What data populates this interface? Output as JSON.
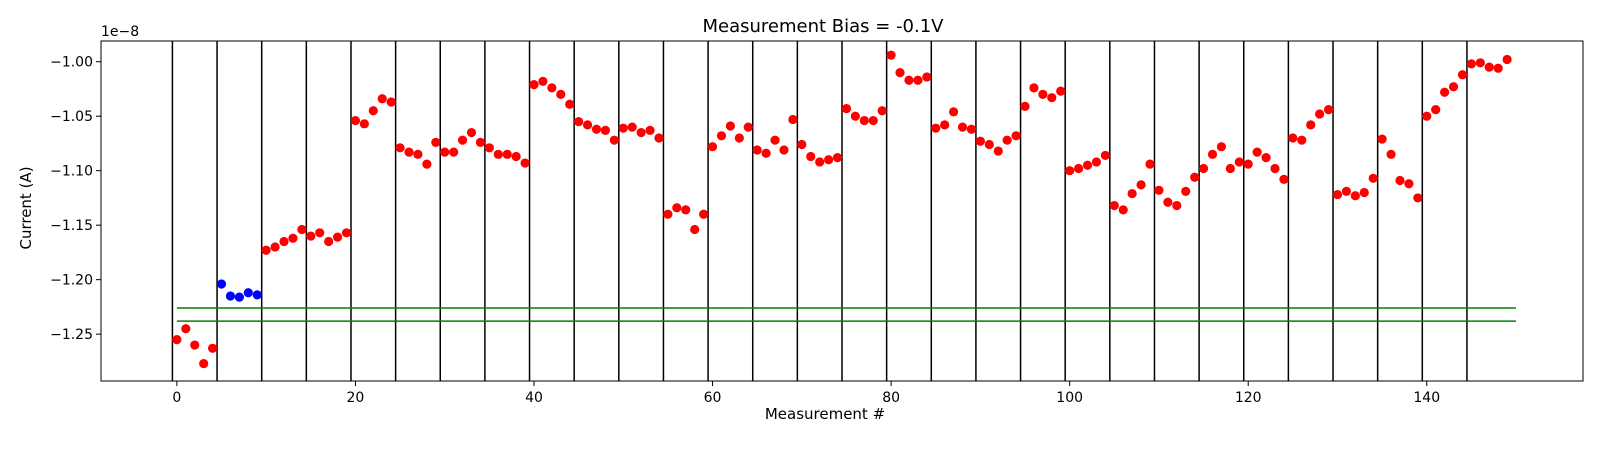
{
  "chart_data": {
    "type": "scatter",
    "title": "Measurement Bias = -0.1V",
    "xlabel": "Measurement #",
    "ylabel": "Current (A)",
    "offset_label": "1e−8",
    "xlim": [
      -8.5,
      157.5
    ],
    "ylim": [
      -1.293,
      -0.981
    ],
    "x_ticks": [
      0,
      20,
      40,
      60,
      80,
      100,
      120,
      140
    ],
    "y_ticks": [
      -1.25,
      -1.2,
      -1.15,
      -1.1,
      -1.05,
      -1.0
    ],
    "y_tick_labels": [
      "−1.25",
      "−1.20",
      "−1.15",
      "−1.10",
      "−1.05",
      "−1.00"
    ],
    "grid": false,
    "vertical_lines_x": [
      -0.5,
      4.5,
      9.5,
      14.5,
      19.5,
      24.5,
      29.5,
      34.5,
      39.5,
      44.5,
      49.5,
      54.5,
      59.5,
      64.5,
      69.5,
      74.5,
      79.5,
      84.5,
      89.5,
      94.5,
      99.5,
      104.5,
      109.5,
      114.5,
      119.5,
      124.5,
      129.5,
      134.5,
      139.5,
      144.5
    ],
    "horizontal_lines": [
      {
        "y": -1.226,
        "x_range": [
          0,
          150
        ],
        "color": "#008000"
      },
      {
        "y": -1.238,
        "x_range": [
          0,
          150
        ],
        "color": "#008000"
      }
    ],
    "series": [
      {
        "color": "#ff0000",
        "points": [
          [
            0,
            -1.255
          ],
          [
            1,
            -1.245
          ],
          [
            2,
            -1.26
          ],
          [
            3,
            -1.277
          ],
          [
            4,
            -1.263
          ],
          [
            10,
            -1.173
          ],
          [
            11,
            -1.17
          ],
          [
            12,
            -1.165
          ],
          [
            13,
            -1.162
          ],
          [
            14,
            -1.154
          ],
          [
            15,
            -1.16
          ],
          [
            16,
            -1.157
          ],
          [
            17,
            -1.165
          ],
          [
            18,
            -1.161
          ],
          [
            19,
            -1.157
          ],
          [
            20,
            -1.054
          ],
          [
            21,
            -1.057
          ],
          [
            22,
            -1.045
          ],
          [
            23,
            -1.034
          ],
          [
            24,
            -1.037
          ],
          [
            25,
            -1.079
          ],
          [
            26,
            -1.083
          ],
          [
            27,
            -1.085
          ],
          [
            28,
            -1.094
          ],
          [
            29,
            -1.074
          ],
          [
            30,
            -1.083
          ],
          [
            31,
            -1.083
          ],
          [
            32,
            -1.072
          ],
          [
            33,
            -1.065
          ],
          [
            34,
            -1.074
          ],
          [
            35,
            -1.079
          ],
          [
            36,
            -1.085
          ],
          [
            37,
            -1.085
          ],
          [
            38,
            -1.087
          ],
          [
            39,
            -1.093
          ],
          [
            40,
            -1.021
          ],
          [
            41,
            -1.018
          ],
          [
            42,
            -1.024
          ],
          [
            43,
            -1.03
          ],
          [
            44,
            -1.039
          ],
          [
            45,
            -1.055
          ],
          [
            46,
            -1.058
          ],
          [
            47,
            -1.062
          ],
          [
            48,
            -1.063
          ],
          [
            49,
            -1.072
          ],
          [
            50,
            -1.061
          ],
          [
            51,
            -1.06
          ],
          [
            52,
            -1.065
          ],
          [
            53,
            -1.063
          ],
          [
            54,
            -1.07
          ],
          [
            55,
            -1.14
          ],
          [
            56,
            -1.134
          ],
          [
            57,
            -1.136
          ],
          [
            58,
            -1.154
          ],
          [
            59,
            -1.14
          ],
          [
            60,
            -1.078
          ],
          [
            61,
            -1.068
          ],
          [
            62,
            -1.059
          ],
          [
            63,
            -1.07
          ],
          [
            64,
            -1.06
          ],
          [
            65,
            -1.081
          ],
          [
            66,
            -1.084
          ],
          [
            67,
            -1.072
          ],
          [
            68,
            -1.081
          ],
          [
            69,
            -1.053
          ],
          [
            70,
            -1.076
          ],
          [
            71,
            -1.087
          ],
          [
            72,
            -1.092
          ],
          [
            73,
            -1.09
          ],
          [
            74,
            -1.088
          ],
          [
            75,
            -1.043
          ],
          [
            76,
            -1.05
          ],
          [
            77,
            -1.054
          ],
          [
            78,
            -1.054
          ],
          [
            79,
            -1.045
          ],
          [
            80,
            -0.994
          ],
          [
            81,
            -1.01
          ],
          [
            82,
            -1.017
          ],
          [
            83,
            -1.017
          ],
          [
            84,
            -1.014
          ],
          [
            85,
            -1.061
          ],
          [
            86,
            -1.058
          ],
          [
            87,
            -1.046
          ],
          [
            88,
            -1.06
          ],
          [
            89,
            -1.062
          ],
          [
            90,
            -1.073
          ],
          [
            91,
            -1.076
          ],
          [
            92,
            -1.082
          ],
          [
            93,
            -1.072
          ],
          [
            94,
            -1.068
          ],
          [
            95,
            -1.041
          ],
          [
            96,
            -1.024
          ],
          [
            97,
            -1.03
          ],
          [
            98,
            -1.033
          ],
          [
            99,
            -1.027
          ],
          [
            100,
            -1.1
          ],
          [
            101,
            -1.098
          ],
          [
            102,
            -1.095
          ],
          [
            103,
            -1.092
          ],
          [
            104,
            -1.086
          ],
          [
            105,
            -1.132
          ],
          [
            106,
            -1.136
          ],
          [
            107,
            -1.121
          ],
          [
            108,
            -1.113
          ],
          [
            109,
            -1.094
          ],
          [
            110,
            -1.118
          ],
          [
            111,
            -1.129
          ],
          [
            112,
            -1.132
          ],
          [
            113,
            -1.119
          ],
          [
            114,
            -1.106
          ],
          [
            115,
            -1.098
          ],
          [
            116,
            -1.085
          ],
          [
            117,
            -1.078
          ],
          [
            118,
            -1.098
          ],
          [
            119,
            -1.092
          ],
          [
            120,
            -1.094
          ],
          [
            121,
            -1.083
          ],
          [
            122,
            -1.088
          ],
          [
            123,
            -1.098
          ],
          [
            124,
            -1.108
          ],
          [
            125,
            -1.07
          ],
          [
            126,
            -1.072
          ],
          [
            127,
            -1.058
          ],
          [
            128,
            -1.048
          ],
          [
            129,
            -1.044
          ],
          [
            130,
            -1.122
          ],
          [
            131,
            -1.119
          ],
          [
            132,
            -1.123
          ],
          [
            133,
            -1.12
          ],
          [
            134,
            -1.107
          ],
          [
            135,
            -1.071
          ],
          [
            136,
            -1.085
          ],
          [
            137,
            -1.109
          ],
          [
            138,
            -1.112
          ],
          [
            139,
            -1.125
          ],
          [
            140,
            -1.05
          ],
          [
            141,
            -1.044
          ],
          [
            142,
            -1.028
          ],
          [
            143,
            -1.023
          ],
          [
            144,
            -1.012
          ],
          [
            145,
            -1.002
          ],
          [
            146,
            -1.001
          ],
          [
            147,
            -1.005
          ],
          [
            148,
            -1.006
          ],
          [
            149,
            -0.998
          ]
        ]
      },
      {
        "color": "#0000ff",
        "points": [
          [
            5,
            -1.204
          ],
          [
            6,
            -1.215
          ],
          [
            7,
            -1.216
          ],
          [
            8,
            -1.212
          ],
          [
            9,
            -1.214
          ]
        ]
      }
    ]
  }
}
